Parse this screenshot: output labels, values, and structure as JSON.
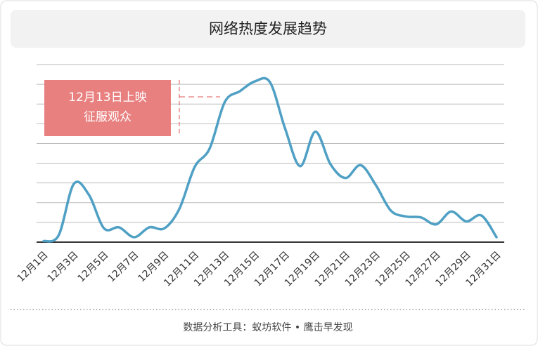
{
  "chart_data": {
    "type": "line",
    "title": "网络热度发展趋势",
    "categories": [
      "12月1日",
      null,
      "12月3日",
      null,
      "12月5日",
      null,
      "12月7日",
      null,
      "12月9日",
      null,
      "12月11日",
      null,
      "12月13日",
      null,
      "12月15日",
      null,
      "12月17日",
      null,
      "12月19日",
      null,
      "12月21日",
      null,
      "12月23日",
      null,
      "12月25日",
      null,
      "12月27日",
      null,
      "12月29日",
      null,
      "12月31日"
    ],
    "values": [
      0.05,
      0.35,
      2.95,
      2.4,
      0.7,
      0.75,
      0.25,
      0.75,
      0.7,
      1.7,
      3.8,
      4.75,
      7.1,
      7.65,
      8.15,
      8.1,
      5.75,
      3.85,
      5.6,
      3.95,
      3.25,
      3.9,
      2.9,
      1.6,
      1.3,
      1.25,
      0.9,
      1.55,
      1.05,
      1.35,
      0.25
    ],
    "color": "#4fa0c4",
    "ylim": [
      0,
      9
    ],
    "yticks": [
      0,
      1,
      2,
      3,
      4,
      5,
      6,
      7,
      8,
      9
    ],
    "grid": true,
    "annotation": [
      "12月13日上映",
      "征服观众"
    ],
    "source": "数据分析工具：蚁坊软件 • 鹰击早发现"
  }
}
